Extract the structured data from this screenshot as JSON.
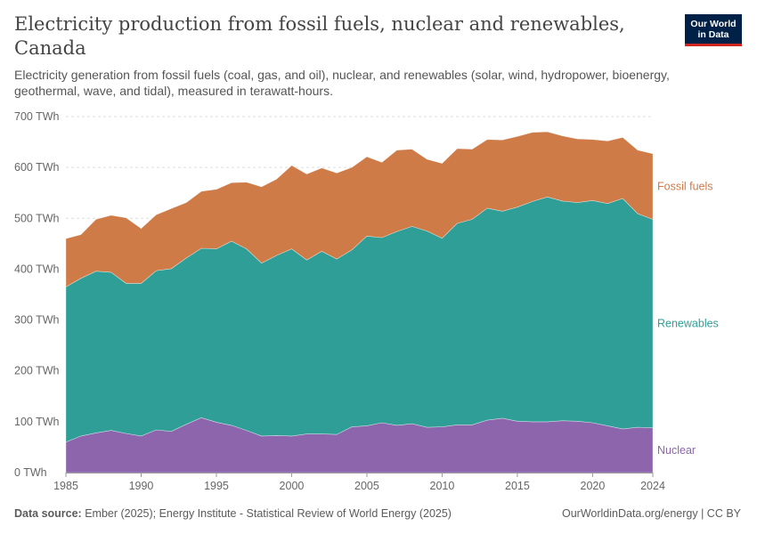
{
  "title": "Electricity production from fossil fuels, nuclear and renewables, Canada",
  "subtitle": "Electricity generation from fossil fuels (coal, gas, and oil), nuclear, and renewables (solar, wind, hydropower, bioenergy, geothermal, wave, and tidal), measured in terawatt-hours.",
  "logo": {
    "line1": "Our World",
    "line2": "in Data",
    "color": "#002147",
    "accent": "#ce261e"
  },
  "footer": {
    "source_label": "Data source:",
    "source_text": "Ember (2025); Energy Institute - Statistical Review of World Energy (2025)",
    "link": "OurWorldinData.org/energy | CC BY"
  },
  "chart_data": {
    "type": "area",
    "stacked": true,
    "x": [
      1985,
      1986,
      1987,
      1988,
      1989,
      1990,
      1991,
      1992,
      1993,
      1994,
      1995,
      1996,
      1997,
      1998,
      1999,
      2000,
      2001,
      2002,
      2003,
      2004,
      2005,
      2006,
      2007,
      2008,
      2009,
      2010,
      2011,
      2012,
      2013,
      2014,
      2015,
      2016,
      2017,
      2018,
      2019,
      2020,
      2021,
      2022,
      2023,
      2024
    ],
    "x_ticks": [
      1985,
      1990,
      1995,
      2000,
      2005,
      2010,
      2015,
      2020,
      2024
    ],
    "y_ticks": [
      0,
      100,
      200,
      300,
      400,
      500,
      600,
      700
    ],
    "y_tick_labels": [
      "0 TWh",
      "100 TWh",
      "200 TWh",
      "300 TWh",
      "400 TWh",
      "500 TWh",
      "600 TWh",
      "700 TWh"
    ],
    "ylim": [
      0,
      700
    ],
    "grid": true,
    "series": [
      {
        "name": "Nuclear",
        "color": "#8c65ac",
        "values": [
          60,
          72,
          78,
          83,
          77,
          72,
          84,
          81,
          95,
          108,
          99,
          93,
          83,
          72,
          73,
          72,
          76,
          76,
          75,
          90,
          92,
          98,
          93,
          96,
          89,
          90,
          94,
          94,
          103,
          107,
          101,
          100,
          100,
          102,
          101,
          98,
          92,
          86,
          89,
          88
        ]
      },
      {
        "name": "Renewables",
        "color": "#2f9e97",
        "values": [
          305,
          310,
          318,
          311,
          295,
          300,
          313,
          320,
          327,
          333,
          341,
          362,
          357,
          340,
          354,
          368,
          342,
          359,
          345,
          348,
          373,
          364,
          381,
          388,
          386,
          371,
          396,
          404,
          417,
          407,
          421,
          433,
          442,
          432,
          430,
          437,
          437,
          453,
          420,
          410
        ]
      },
      {
        "name": "Fossil fuels",
        "color": "#ce7b48",
        "values": [
          95,
          86,
          102,
          112,
          129,
          108,
          110,
          118,
          109,
          112,
          117,
          115,
          131,
          150,
          150,
          164,
          169,
          164,
          169,
          162,
          156,
          148,
          160,
          152,
          141,
          147,
          147,
          138,
          135,
          140,
          139,
          136,
          128,
          128,
          125,
          120,
          123,
          120,
          125,
          129
        ]
      }
    ]
  }
}
